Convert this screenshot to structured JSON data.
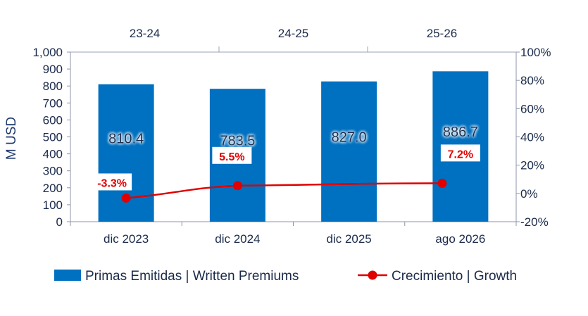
{
  "chart_data": {
    "type": "bar",
    "categories": [
      "dic 2023",
      "dic 2024",
      "dic 2025",
      "ago 2026"
    ],
    "periods": [
      "23-24",
      "24-25",
      "25-26"
    ],
    "ylabel": "M  USD",
    "ylim": [
      0,
      1000
    ],
    "y_ticks": [
      "0",
      "100",
      "200",
      "300",
      "400",
      "500",
      "600",
      "700",
      "800",
      "900",
      "1,000"
    ],
    "y2lim": [
      -20,
      100
    ],
    "y2_ticks": [
      "-20%",
      "0%",
      "20%",
      "40%",
      "60%",
      "80%",
      "100%"
    ],
    "grid": false,
    "legend_position": "bottom",
    "series": [
      {
        "name": "Primas Emitidas | Written Premiums",
        "type": "bar",
        "axis": "left",
        "color": "#0070c0",
        "values": [
          810.4,
          783.5,
          827.0,
          886.7
        ],
        "labels": [
          "810.4",
          "783.5",
          "827.0",
          "886.7"
        ]
      },
      {
        "name": "Crecimiento | Growth",
        "type": "line",
        "axis": "right",
        "color": "#e00000",
        "values": [
          -3.3,
          5.5,
          null,
          7.2
        ],
        "labels": [
          "-3.3%",
          "5.5%",
          "",
          "7.2%"
        ]
      }
    ]
  }
}
